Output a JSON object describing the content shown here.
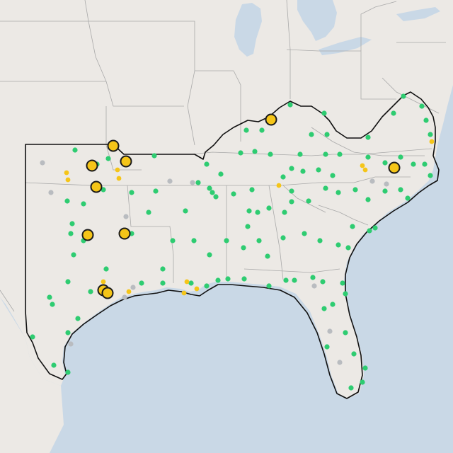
{
  "map": {
    "colors": {
      "water": "#c9d8e6",
      "land": "#ece9e5",
      "state_lines": "#a9a9a9",
      "region_outline": "#111111",
      "green_marker": "#2ecc71",
      "gray_marker": "#b9bcc0",
      "yellow_marker": "#f5c518"
    },
    "legend": []
  }
}
